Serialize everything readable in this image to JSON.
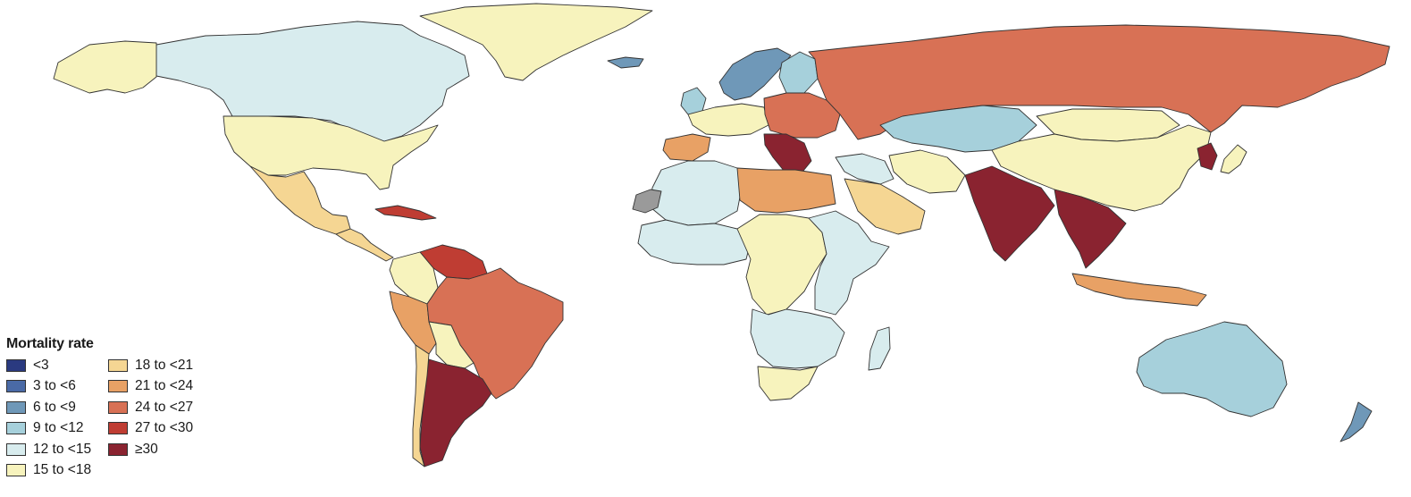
{
  "legend": {
    "title": "Mortality rate",
    "items": [
      {
        "label": "<3",
        "color": "#2a3a80"
      },
      {
        "label": "3 to <6",
        "color": "#4a6aa6"
      },
      {
        "label": "6 to <9",
        "color": "#6f98b8"
      },
      {
        "label": "9 to <12",
        "color": "#a6d0db"
      },
      {
        "label": "12 to <15",
        "color": "#d8ecee"
      },
      {
        "label": "15 to <18",
        "color": "#f7f3bd"
      },
      {
        "label": "18 to <21",
        "color": "#f5d693"
      },
      {
        "label": "21 to <24",
        "color": "#e8a165"
      },
      {
        "label": "24 to <27",
        "color": "#d87155"
      },
      {
        "label": "27 to <30",
        "color": "#bf3d33"
      },
      {
        "label": "≥30",
        "color": "#8a2330"
      }
    ]
  },
  "map": {
    "type": "choropleth",
    "no_data_color": "#9a9a9a",
    "regions": [
      {
        "name": "Greenland",
        "bin": 5
      },
      {
        "name": "Canada",
        "bin": 4
      },
      {
        "name": "Alaska",
        "bin": 5
      },
      {
        "name": "USA",
        "bin": 5
      },
      {
        "name": "Mexico",
        "bin": 6
      },
      {
        "name": "Central America",
        "bin": 6
      },
      {
        "name": "Cuba",
        "bin": 9
      },
      {
        "name": "Venezuela",
        "bin": 9
      },
      {
        "name": "Colombia",
        "bin": 5
      },
      {
        "name": "Peru",
        "bin": 7
      },
      {
        "name": "Brazil",
        "bin": 8
      },
      {
        "name": "Bolivia",
        "bin": 5
      },
      {
        "name": "Argentina",
        "bin": 10
      },
      {
        "name": "Chile",
        "bin": 6
      },
      {
        "name": "Iceland",
        "bin": 2
      },
      {
        "name": "Scandinavia",
        "bin": 2
      },
      {
        "name": "Finland",
        "bin": 3
      },
      {
        "name": "UK",
        "bin": 3
      },
      {
        "name": "Western Europe",
        "bin": 5
      },
      {
        "name": "Iberia",
        "bin": 7
      },
      {
        "name": "Eastern Europe",
        "bin": 8
      },
      {
        "name": "Balkans",
        "bin": 10
      },
      {
        "name": "Russia",
        "bin": 8
      },
      {
        "name": "Kazakhstan",
        "bin": 3
      },
      {
        "name": "Mongolia",
        "bin": 5
      },
      {
        "name": "China",
        "bin": 5
      },
      {
        "name": "Korea",
        "bin": 10
      },
      {
        "name": "Japan",
        "bin": 5
      },
      {
        "name": "Middle East",
        "bin": 4
      },
      {
        "name": "Arabia",
        "bin": 6
      },
      {
        "name": "Iran",
        "bin": 5
      },
      {
        "name": "India",
        "bin": 10
      },
      {
        "name": "Southeast Asia",
        "bin": 10
      },
      {
        "name": "Indonesia",
        "bin": 7
      },
      {
        "name": "Australia",
        "bin": 3
      },
      {
        "name": "New Zealand",
        "bin": 2
      },
      {
        "name": "North Africa",
        "bin": 4
      },
      {
        "name": "Libya Egypt",
        "bin": 7
      },
      {
        "name": "West Africa",
        "bin": 4
      },
      {
        "name": "Central Africa",
        "bin": 5
      },
      {
        "name": "East Africa",
        "bin": 4
      },
      {
        "name": "Southern Africa",
        "bin": 4
      },
      {
        "name": "South Africa",
        "bin": 5
      },
      {
        "name": "Madagascar",
        "bin": 4
      },
      {
        "name": "Western Sahara",
        "bin": -1
      }
    ]
  }
}
